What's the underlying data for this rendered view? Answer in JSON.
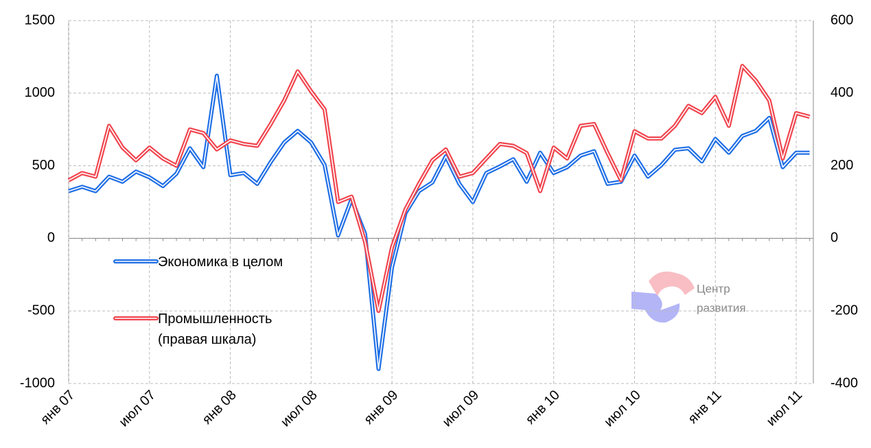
{
  "chart_data": {
    "type": "line",
    "categories": [
      "янв 07",
      null,
      null,
      null,
      null,
      null,
      "июл 07",
      null,
      null,
      null,
      null,
      null,
      "янв 08",
      null,
      null,
      null,
      null,
      null,
      "июл 08",
      null,
      null,
      null,
      null,
      null,
      "янв 09",
      null,
      null,
      null,
      null,
      null,
      "июл 09",
      null,
      null,
      null,
      null,
      null,
      "янв 10",
      null,
      null,
      null,
      null,
      null,
      "июл 10",
      null,
      null,
      null,
      null,
      null,
      "янв 11",
      null,
      null,
      null,
      null,
      null,
      "июл 11",
      null
    ],
    "series": [
      {
        "name": "Экономика в целом",
        "color": "#1f6fe5",
        "axis": "y",
        "values": [
          325,
          355,
          325,
          425,
          390,
          460,
          420,
          360,
          445,
          620,
          490,
          1120,
          435,
          450,
          375,
          525,
          660,
          740,
          660,
          505,
          20,
          270,
          30,
          -900,
          -200,
          175,
          325,
          385,
          565,
          375,
          250,
          450,
          495,
          545,
          390,
          590,
          450,
          490,
          570,
          600,
          375,
          390,
          570,
          425,
          505,
          610,
          620,
          530,
          685,
          590,
          705,
          740,
          830,
          490,
          590,
          590
        ]
      },
      {
        "name": "Промышленность (правая шкала)",
        "color": "#f0454e",
        "axis": "y2",
        "values": [
          160,
          180,
          170,
          310,
          250,
          215,
          250,
          220,
          200,
          300,
          290,
          245,
          270,
          260,
          255,
          315,
          380,
          460,
          405,
          355,
          100,
          115,
          -10,
          -200,
          -25,
          80,
          150,
          215,
          245,
          170,
          180,
          220,
          260,
          255,
          235,
          130,
          250,
          220,
          310,
          315,
          235,
          160,
          295,
          275,
          275,
          310,
          365,
          345,
          390,
          310,
          475,
          435,
          380,
          220,
          345,
          335
        ]
      }
    ],
    "ylim": [
      -1000,
      1500
    ],
    "yticks": [
      -1000,
      -500,
      0,
      500,
      1000,
      1500
    ],
    "y2lim": [
      -400,
      600
    ],
    "y2ticks": [
      -400,
      -200,
      0,
      200,
      400,
      600
    ],
    "grid": true,
    "watermark": [
      "Центр",
      "развития"
    ]
  }
}
